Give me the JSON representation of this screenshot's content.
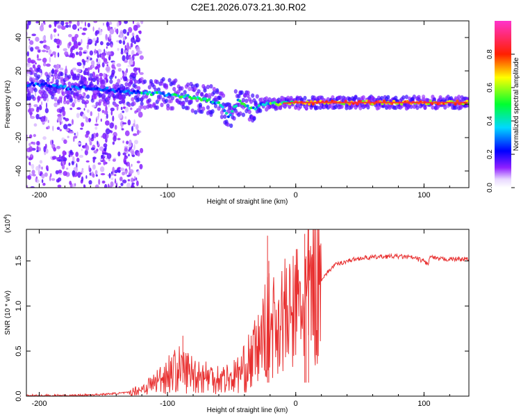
{
  "title": "C2E1.2026.073.21.30.R02",
  "chart_data": [
    {
      "type": "heatmap",
      "xlabel": "Height of straight line (km)",
      "ylabel": "Frequency (Hz)",
      "xlim": [
        -210,
        135
      ],
      "ylim": [
        -50,
        50
      ],
      "xticks": [
        -200,
        -100,
        0,
        100
      ],
      "yticks": [
        -40,
        -20,
        0,
        20,
        40
      ],
      "xtick_labels": [
        "-200",
        "-100",
        "0",
        "100"
      ],
      "ytick_labels": [
        "-40",
        "-20",
        "0",
        "20",
        "40"
      ],
      "ridge": [
        {
          "x": -200,
          "f": 12
        },
        {
          "x": -180,
          "f": 10
        },
        {
          "x": -150,
          "f": 9
        },
        {
          "x": -120,
          "f": 7
        },
        {
          "x": -100,
          "f": 6
        },
        {
          "x": -80,
          "f": 4
        },
        {
          "x": -60,
          "f": 1
        },
        {
          "x": -52,
          "f": -8
        },
        {
          "x": -45,
          "f": 2
        },
        {
          "x": -35,
          "f": -3
        },
        {
          "x": -25,
          "f": 0
        },
        {
          "x": 0,
          "f": 1
        },
        {
          "x": 50,
          "f": 1
        },
        {
          "x": 100,
          "f": 1
        },
        {
          "x": 135,
          "f": 1
        }
      ],
      "colorbar": {
        "label": "Normalized spectral amplitude",
        "range": [
          0,
          1
        ],
        "ticks": [
          0.0,
          0.2,
          0.4,
          0.6,
          0.8
        ],
        "tick_labels": [
          "0.0",
          "0.2",
          "0.4",
          "0.6",
          "0.8"
        ],
        "colors": [
          "#ffffff",
          "#8800ff",
          "#0000ff",
          "#00ffff",
          "#00ff00",
          "#ffff00",
          "#ff0000",
          "#ff00ff"
        ]
      }
    },
    {
      "type": "line",
      "xlabel": "Height of straight line (km)",
      "ylabel": "SNR (10 * v/v)",
      "scale_label": "(x10",
      "scale_exp": "4",
      "scale_close": ")",
      "xlim": [
        -210,
        135
      ],
      "ylim": [
        0,
        1.85
      ],
      "xticks": [
        -200,
        -100,
        0,
        100
      ],
      "yticks": [
        0.0,
        0.5,
        1.0,
        1.5
      ],
      "xtick_labels": [
        "-200",
        "-100",
        "0",
        "100"
      ],
      "ytick_labels": [
        "0.0",
        "0.5",
        "1.0",
        "1.5"
      ],
      "color": "#e83030",
      "series": [
        {
          "name": "SNR",
          "x": [
            -210,
            -190,
            -170,
            -150,
            -130,
            -120,
            -110,
            -100,
            -90,
            -80,
            -70,
            -60,
            -50,
            -40,
            -30,
            -25,
            -20,
            -15,
            -10,
            -5,
            0,
            5,
            10,
            15,
            20,
            30,
            40,
            50,
            60,
            70,
            80,
            90,
            100,
            103,
            105,
            110,
            120,
            135
          ],
          "y": [
            0.0,
            0.0,
            0.01,
            0.02,
            0.04,
            0.08,
            0.15,
            0.25,
            0.3,
            0.25,
            0.22,
            0.2,
            0.2,
            0.3,
            0.5,
            0.7,
            0.8,
            0.8,
            0.9,
            0.85,
            1.0,
            1.0,
            1.1,
            1.2,
            1.3,
            1.45,
            1.5,
            1.53,
            1.54,
            1.55,
            1.55,
            1.54,
            1.5,
            1.46,
            1.55,
            1.52,
            1.52,
            1.52
          ]
        }
      ],
      "spikes": [
        {
          "x": -88,
          "y": 0.67
        },
        {
          "x": -22,
          "y": 1.78
        },
        {
          "x": -21,
          "y": 1.5
        },
        {
          "x": 7,
          "y": 1.8
        },
        {
          "x": 10,
          "y": 1.85
        },
        {
          "x": 8,
          "y": 1.55
        }
      ]
    }
  ]
}
